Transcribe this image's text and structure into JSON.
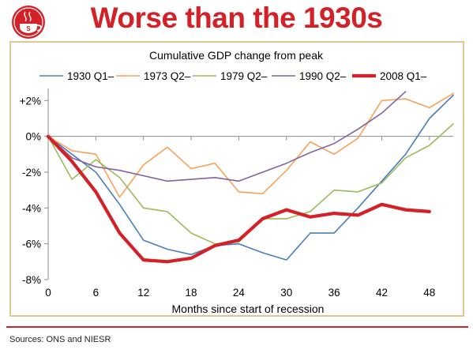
{
  "header": {
    "title": "Worse than the 1930s",
    "logo_icon": "coffee-cup-icon",
    "accent_color": "#d42027"
  },
  "footer": {
    "source": "Sources: ONS and NIESR"
  },
  "chart_data": {
    "type": "line",
    "title": "Cumulative GDP change from peak",
    "xlabel": "Months since start of recession",
    "ylabel": "",
    "xlim": [
      0,
      51
    ],
    "ylim": [
      -8,
      2.5
    ],
    "xticks": [
      0,
      6,
      12,
      18,
      24,
      30,
      36,
      42,
      48
    ],
    "xtick_labels": [
      "0",
      "6",
      "12",
      "18",
      "24",
      "30",
      "36",
      "42",
      "48"
    ],
    "yticks": [
      2,
      0,
      -2,
      -4,
      -6,
      -8
    ],
    "ytick_labels": [
      "+2%",
      "0%",
      "-2%",
      "-4%",
      "-6%",
      "-8%"
    ],
    "grid": false,
    "legend": "top",
    "series": [
      {
        "name": "1930 Q1–",
        "color": "#4a7ebb",
        "width": 1.6,
        "x": [
          0,
          3,
          6,
          9,
          12,
          15,
          18,
          21,
          24,
          27,
          30,
          33,
          36,
          39,
          42,
          45,
          48,
          51
        ],
        "y": [
          0,
          -1.0,
          -2.0,
          -3.8,
          -5.8,
          -6.3,
          -6.6,
          -6.1,
          -6.0,
          -6.5,
          -6.9,
          -5.4,
          -5.4,
          -4.0,
          -2.5,
          -1.0,
          1.0,
          2.3
        ]
      },
      {
        "name": "1973 Q2–",
        "color": "#f7a25a",
        "width": 1.6,
        "x": [
          0,
          3,
          6,
          9,
          12,
          15,
          18,
          21,
          24,
          27,
          30,
          33,
          36,
          39,
          42,
          45,
          48,
          51
        ],
        "y": [
          0,
          -0.8,
          -1.0,
          -3.4,
          -1.6,
          -0.6,
          -1.8,
          -1.5,
          -3.1,
          -3.2,
          -1.9,
          -0.3,
          -1.0,
          -0.1,
          2.0,
          2.1,
          1.6,
          2.4
        ]
      },
      {
        "name": "1979 Q2–",
        "color": "#9bbb59",
        "width": 1.6,
        "x": [
          0,
          3,
          6,
          9,
          12,
          15,
          18,
          21,
          24,
          27,
          30,
          33,
          36,
          39,
          42,
          45,
          48,
          51
        ],
        "y": [
          0,
          -2.4,
          -1.3,
          -2.3,
          -4.0,
          -4.2,
          -5.4,
          -6.0,
          -5.9,
          -4.6,
          -4.6,
          -4.2,
          -3.0,
          -3.1,
          -2.6,
          -1.2,
          -0.5,
          0.7
        ]
      },
      {
        "name": "1990 Q2–",
        "color": "#8064a2",
        "width": 1.6,
        "x": [
          0,
          3,
          6,
          9,
          12,
          15,
          18,
          21,
          24,
          27,
          30,
          33,
          36,
          39,
          42,
          45
        ],
        "y": [
          0,
          -1.2,
          -1.7,
          -1.9,
          -2.2,
          -2.5,
          -2.4,
          -2.3,
          -2.5,
          -2.0,
          -1.5,
          -0.9,
          -0.4,
          0.4,
          1.3,
          2.5
        ]
      },
      {
        "name": "2008 Q1–",
        "color": "#d42027",
        "width": 4.2,
        "x": [
          0,
          3,
          6,
          9,
          12,
          15,
          18,
          21,
          24,
          27,
          30,
          33,
          36,
          39,
          42,
          45,
          48
        ],
        "y": [
          0,
          -1.4,
          -3.1,
          -5.4,
          -6.9,
          -7.0,
          -6.8,
          -6.1,
          -5.8,
          -4.6,
          -4.1,
          -4.5,
          -4.3,
          -4.4,
          -3.8,
          -4.1,
          -4.2
        ]
      }
    ]
  }
}
